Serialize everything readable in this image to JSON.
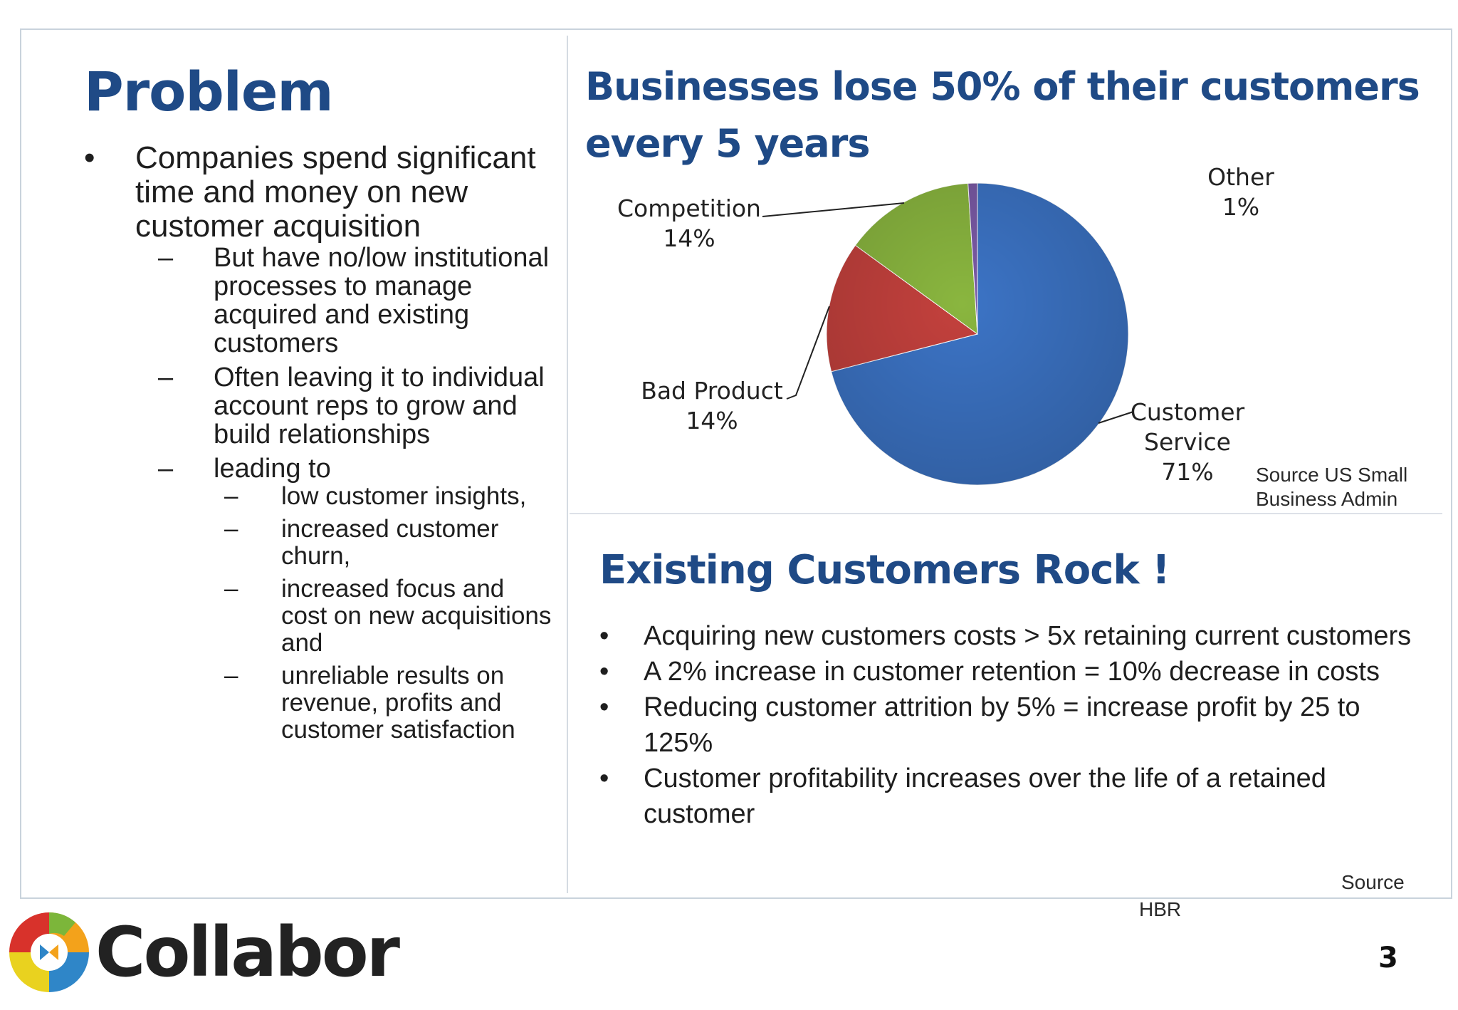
{
  "left": {
    "title": "Problem",
    "bullet": "Companies spend significant time and money on new customer acquisition",
    "subpoints": [
      "But have no/low institutional processes to manage acquired and existing customers",
      "Often leaving it to individual account reps to grow and build relationships",
      "leading to"
    ],
    "leading_to": [
      "low customer insights,",
      "increased customer churn,",
      "increased focus and cost on new acquisitions and",
      "unreliable results on revenue, profits and customer satisfaction"
    ]
  },
  "chart_section": {
    "title": "Businesses lose 50% of their customers every 5 years",
    "source_line1": "Source  US Small",
    "source_line2": "Business Admin"
  },
  "chart_data": {
    "type": "pie",
    "title": "Businesses lose 50% of their customers every 5 years",
    "slices": [
      {
        "label": "Customer Service",
        "label_lines": [
          "Customer",
          "Service"
        ],
        "value": 71,
        "display": "71%",
        "color": "#3c74c6"
      },
      {
        "label": "Bad Product",
        "label_lines": [
          "Bad Product"
        ],
        "value": 14,
        "display": "14%",
        "color": "#c4413d"
      },
      {
        "label": "Competition",
        "label_lines": [
          "Competition"
        ],
        "value": 14,
        "display": "14%",
        "color": "#8ab63f"
      },
      {
        "label": "Other",
        "label_lines": [
          "Other"
        ],
        "value": 1,
        "display": "1%",
        "color": "#7b5aa6"
      }
    ]
  },
  "rock": {
    "title": "Existing Customers Rock !",
    "items": [
      "Acquiring new customers costs > 5x retaining current customers",
      "A 2% increase in customer retention = 10% decrease in costs",
      "Reducing customer attrition by 5% = increase profit by 25 to 125%",
      "Customer profitability increases over the life of a retained customer"
    ],
    "source_label": "Source",
    "source_name": "HBR"
  },
  "footer": {
    "logo_text": "Collabor",
    "page_number": "3"
  }
}
